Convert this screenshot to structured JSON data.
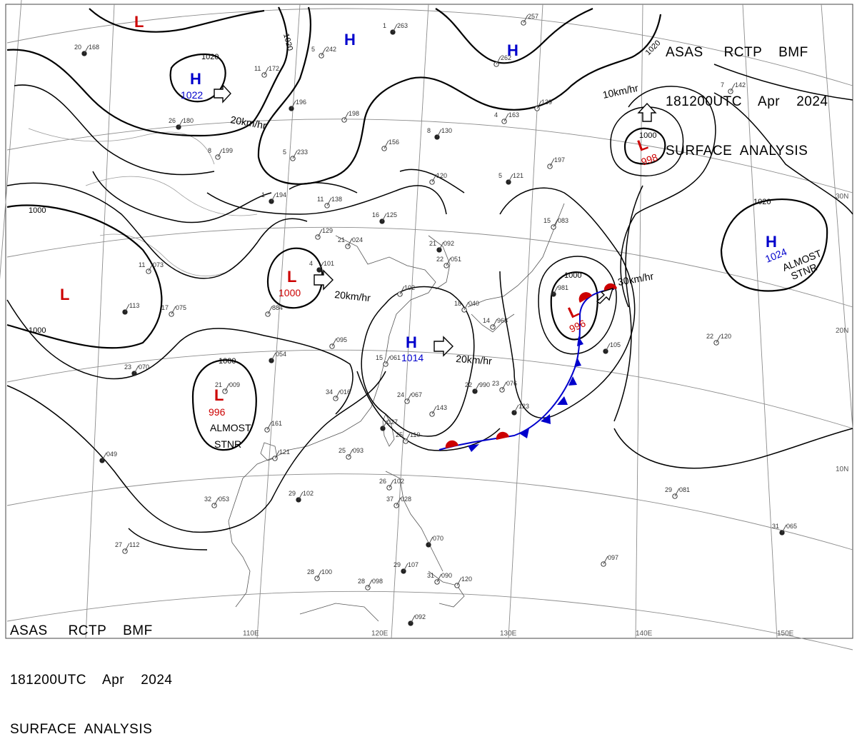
{
  "header": {
    "line1": "ASAS     RCTP    BMF",
    "line2": "181200UTC    Apr    2024",
    "line3": "SURFACE  ANALYSIS"
  },
  "graticule": {
    "latitudes": [
      "30N",
      "20N",
      "10N"
    ],
    "longitudes": [
      "110E",
      "120E",
      "130E",
      "140E",
      "150E"
    ]
  },
  "isobars": [
    "1020",
    "1020",
    "1020",
    "1020",
    "1000",
    "1000",
    "1000",
    "1000",
    "1000"
  ],
  "pressure_centers": [
    {
      "type": "H",
      "value": "1022",
      "color": "#0000cc"
    },
    {
      "type": "H",
      "value": "",
      "color": "#0000cc"
    },
    {
      "type": "H",
      "value": "",
      "color": "#0000cc"
    },
    {
      "type": "H",
      "value": "1014",
      "color": "#0000cc"
    },
    {
      "type": "H",
      "value": "1024",
      "color": "#0000cc"
    },
    {
      "type": "L",
      "value": "",
      "color": "#cc0000"
    },
    {
      "type": "L",
      "value": "",
      "color": "#cc0000"
    },
    {
      "type": "L",
      "value": "1000",
      "color": "#cc0000"
    },
    {
      "type": "L",
      "value": "996",
      "color": "#cc0000"
    },
    {
      "type": "L",
      "value": "998",
      "color": "#cc0000"
    },
    {
      "type": "L",
      "value": "996",
      "color": "#cc0000"
    }
  ],
  "annotations": {
    "motion": [
      "20km/hr",
      "20km/hr",
      "20km/hr",
      "30km/hr",
      "10km/hr"
    ],
    "almost_stnr": "ALMOST",
    "stnr": "STNR"
  },
  "stations": [
    {
      "t": "20",
      "p": "168"
    },
    {
      "t": "11",
      "p": "172"
    },
    {
      "t": "5",
      "p": "242"
    },
    {
      "t": "1",
      "p": "263"
    },
    {
      "t": "",
      "p": "262"
    },
    {
      "t": "",
      "p": "257"
    },
    {
      "t": "26",
      "p": "180"
    },
    {
      "t": "8",
      "p": "199"
    },
    {
      "t": "5",
      "p": "233"
    },
    {
      "t": "",
      "p": "196"
    },
    {
      "t": "",
      "p": "198"
    },
    {
      "t": "",
      "p": "156"
    },
    {
      "t": "8",
      "p": "130"
    },
    {
      "t": "4",
      "p": "163"
    },
    {
      "t": "",
      "p": "139"
    },
    {
      "t": "1",
      "p": "194"
    },
    {
      "t": "11",
      "p": "138"
    },
    {
      "t": "",
      "p": "120"
    },
    {
      "t": "5",
      "p": "121"
    },
    {
      "t": "",
      "p": "197"
    },
    {
      "t": "7",
      "p": "142"
    },
    {
      "t": "16",
      "p": "125"
    },
    {
      "t": "",
      "p": "129"
    },
    {
      "t": "21",
      "p": "024"
    },
    {
      "t": "21",
      "p": "092"
    },
    {
      "t": "15",
      "p": "083"
    },
    {
      "t": "11",
      "p": "073"
    },
    {
      "t": "4",
      "p": "101"
    },
    {
      "t": "22",
      "p": "051"
    },
    {
      "t": "",
      "p": "102"
    },
    {
      "t": "",
      "p": "113"
    },
    {
      "t": "17",
      "p": "075"
    },
    {
      "t": "",
      "p": "884"
    },
    {
      "t": "",
      "p": "981"
    },
    {
      "t": "18",
      "p": "040"
    },
    {
      "t": "14",
      "p": "968"
    },
    {
      "t": "",
      "p": "054"
    },
    {
      "t": "",
      "p": "095"
    },
    {
      "t": "15",
      "p": "061"
    },
    {
      "t": "23",
      "p": "070"
    },
    {
      "t": "21",
      "p": "009"
    },
    {
      "t": "34",
      "p": "016"
    },
    {
      "t": "22",
      "p": "990"
    },
    {
      "t": "23",
      "p": "076"
    },
    {
      "t": "22",
      "p": "120"
    },
    {
      "t": "",
      "p": "105"
    },
    {
      "t": "",
      "p": "161"
    },
    {
      "t": "24",
      "p": "067"
    },
    {
      "t": "",
      "p": "027"
    },
    {
      "t": "",
      "p": "143"
    },
    {
      "t": "25",
      "p": "110"
    },
    {
      "t": "",
      "p": "123"
    },
    {
      "t": "",
      "p": "121"
    },
    {
      "t": "25",
      "p": "093"
    },
    {
      "t": "",
      "p": "049"
    },
    {
      "t": "26",
      "p": "102"
    },
    {
      "t": "32",
      "p": "053"
    },
    {
      "t": "29",
      "p": "102"
    },
    {
      "t": "37",
      "p": "028"
    },
    {
      "t": "29",
      "p": "081"
    },
    {
      "t": "",
      "p": "070"
    },
    {
      "t": "27",
      "p": "112"
    },
    {
      "t": "",
      "p": "097"
    },
    {
      "t": "31",
      "p": "065"
    },
    {
      "t": "28",
      "p": "100"
    },
    {
      "t": "28",
      "p": "098"
    },
    {
      "t": "29",
      "p": "107"
    },
    {
      "t": "31",
      "p": "090"
    },
    {
      "t": "",
      "p": "120"
    },
    {
      "t": "",
      "p": "092"
    },
    {
      "t": "",
      "p": "101"
    },
    {
      "t": "29",
      "p": "085"
    }
  ],
  "colors": {
    "isobar": "#000000",
    "graticule": "#8c8c8c",
    "coast": "#555555",
    "high": "#0000cc",
    "low": "#cc0000",
    "cold_front": "#0000cc",
    "warm_front": "#cc0000"
  }
}
